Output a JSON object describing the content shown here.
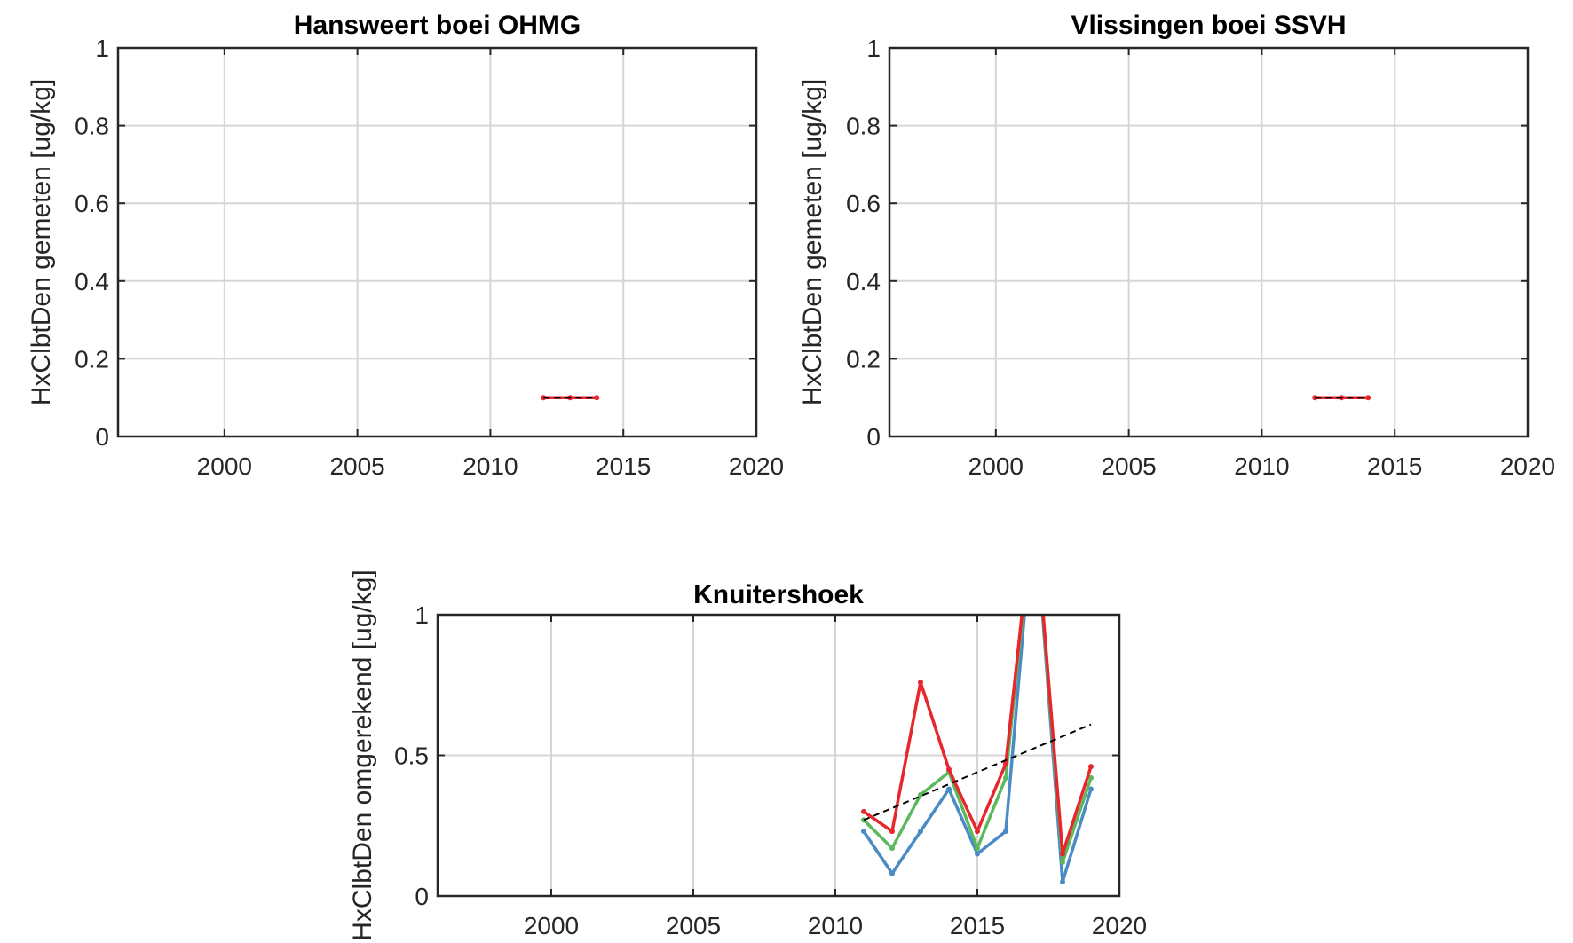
{
  "figure": {
    "background": "#ffffff"
  },
  "chart_data": [
    {
      "type": "line",
      "title": "Hansweert boei OHMG",
      "xlabel": "",
      "ylabel": "HxClbtDen gemeten [ug/kg]",
      "xlim": [
        1996,
        2020
      ],
      "ylim": [
        0,
        1
      ],
      "xticks": [
        2000,
        2005,
        2010,
        2015,
        2020
      ],
      "yticks": [
        0,
        0.2,
        0.4,
        0.6,
        0.8,
        1
      ],
      "ytick_labels": [
        "0",
        "0.2",
        "0.4",
        "0.6",
        "0.8",
        "1"
      ],
      "grid": true,
      "series": [
        {
          "color": "#e8262b",
          "style": "solid",
          "x": [
            2012,
            2013,
            2014
          ],
          "values": [
            0.1,
            0.1,
            0.1
          ]
        },
        {
          "color": "#000000",
          "style": "dashed",
          "x": [
            2012,
            2014
          ],
          "values": [
            0.1,
            0.1
          ]
        }
      ]
    },
    {
      "type": "line",
      "title": "Vlissingen boei SSVH",
      "xlabel": "",
      "ylabel": "HxClbtDen gemeten [ug/kg]",
      "xlim": [
        1996,
        2020
      ],
      "ylim": [
        0,
        1
      ],
      "xticks": [
        2000,
        2005,
        2010,
        2015,
        2020
      ],
      "yticks": [
        0,
        0.2,
        0.4,
        0.6,
        0.8,
        1
      ],
      "ytick_labels": [
        "0",
        "0.2",
        "0.4",
        "0.6",
        "0.8",
        "1"
      ],
      "grid": true,
      "series": [
        {
          "color": "#e8262b",
          "style": "solid",
          "x": [
            2012,
            2013,
            2014
          ],
          "values": [
            0.1,
            0.1,
            0.1
          ]
        },
        {
          "color": "#000000",
          "style": "dashed",
          "x": [
            2012,
            2014
          ],
          "values": [
            0.1,
            0.1
          ]
        }
      ]
    },
    {
      "type": "line",
      "title": "Knuitershoek",
      "xlabel": "",
      "ylabel": "HxClbtDen omgerekend [ug/kg]",
      "xlim": [
        1996,
        2020
      ],
      "ylim": [
        0,
        1
      ],
      "xticks": [
        2000,
        2005,
        2010,
        2015,
        2020
      ],
      "yticks": [
        0,
        0.5,
        1
      ],
      "ytick_labels": [
        "0",
        "0.5",
        "1"
      ],
      "grid": true,
      "series": [
        {
          "color": "#4a8bc4",
          "style": "solid",
          "x": [
            2011,
            2012,
            2013,
            2014,
            2015,
            2016,
            2017,
            2018,
            2019
          ],
          "values": [
            0.23,
            0.08,
            0.23,
            0.38,
            0.15,
            0.23,
            1.4,
            0.05,
            0.38
          ]
        },
        {
          "color": "#5cb85c",
          "style": "solid",
          "x": [
            2011,
            2012,
            2013,
            2014,
            2015,
            2016,
            2017,
            2018,
            2019
          ],
          "values": [
            0.27,
            0.17,
            0.36,
            0.44,
            0.17,
            0.42,
            1.4,
            0.12,
            0.42
          ]
        },
        {
          "color": "#e8262b",
          "style": "solid",
          "x": [
            2011,
            2012,
            2013,
            2014,
            2015,
            2016,
            2017,
            2018,
            2019
          ],
          "values": [
            0.3,
            0.23,
            0.76,
            0.45,
            0.23,
            0.47,
            1.4,
            0.15,
            0.46
          ]
        },
        {
          "color": "#000000",
          "style": "dashed",
          "x": [
            2011,
            2019
          ],
          "values": [
            0.27,
            0.61
          ]
        }
      ]
    }
  ]
}
